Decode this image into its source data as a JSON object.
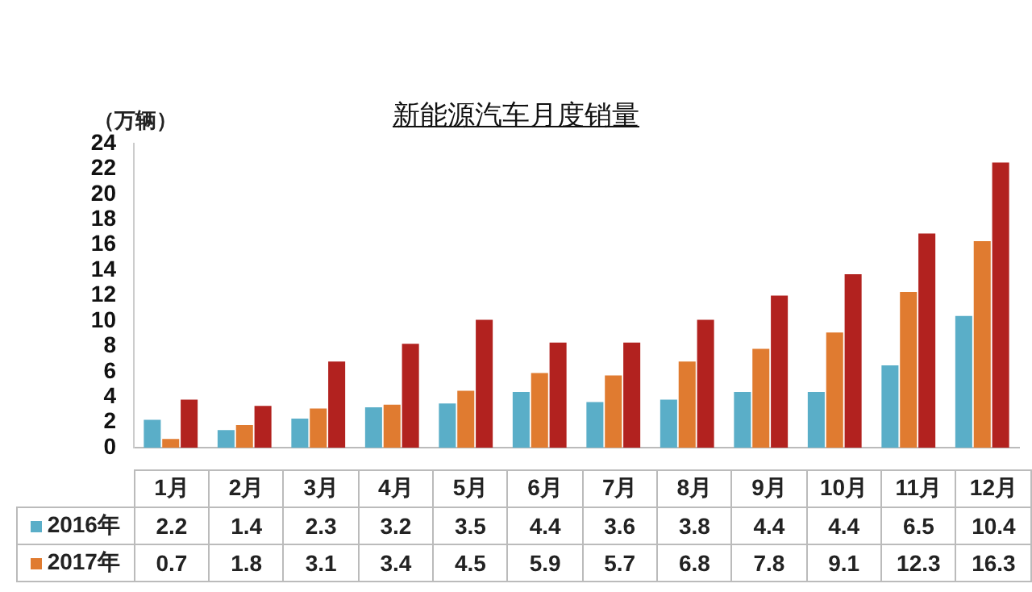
{
  "chart_data": {
    "type": "bar",
    "title": "新能源汽车月度销量",
    "ylabel": "（万辆）",
    "categories": [
      "1月",
      "2月",
      "3月",
      "4月",
      "5月",
      "6月",
      "7月",
      "8月",
      "9月",
      "10月",
      "11月",
      "12月"
    ],
    "series": [
      {
        "name": "2016年",
        "color": "#5aaec8",
        "values": [
          2.2,
          1.4,
          2.3,
          3.2,
          3.5,
          4.4,
          3.6,
          3.8,
          4.4,
          4.4,
          6.5,
          10.4
        ],
        "value_labels": [
          "2.2",
          "1.4",
          "2.3",
          "3.2",
          "3.5",
          "4.4",
          "3.6",
          "3.8",
          "4.4",
          "4.4",
          "6.5",
          "10.4"
        ]
      },
      {
        "name": "2017年",
        "color": "#e07b30",
        "values": [
          0.7,
          1.8,
          3.1,
          3.4,
          4.5,
          5.9,
          5.7,
          6.8,
          7.8,
          9.1,
          12.3,
          16.3
        ],
        "value_labels": [
          "0.7",
          "1.8",
          "3.1",
          "3.4",
          "4.5",
          "5.9",
          "5.7",
          "6.8",
          "7.8",
          "9.1",
          "12.3",
          "16.3"
        ]
      },
      {
        "color": "#b2221f",
        "values": [
          3.8,
          3.3,
          6.8,
          8.2,
          10.1,
          8.3,
          8.3,
          10.1,
          12.0,
          13.7,
          16.9,
          22.5
        ]
      }
    ],
    "ylim": [
      0,
      24
    ],
    "yticks": [
      0,
      2,
      4,
      6,
      8,
      10,
      12,
      14,
      16,
      18,
      20,
      22,
      24
    ],
    "grid": false,
    "legend": "bottom"
  }
}
